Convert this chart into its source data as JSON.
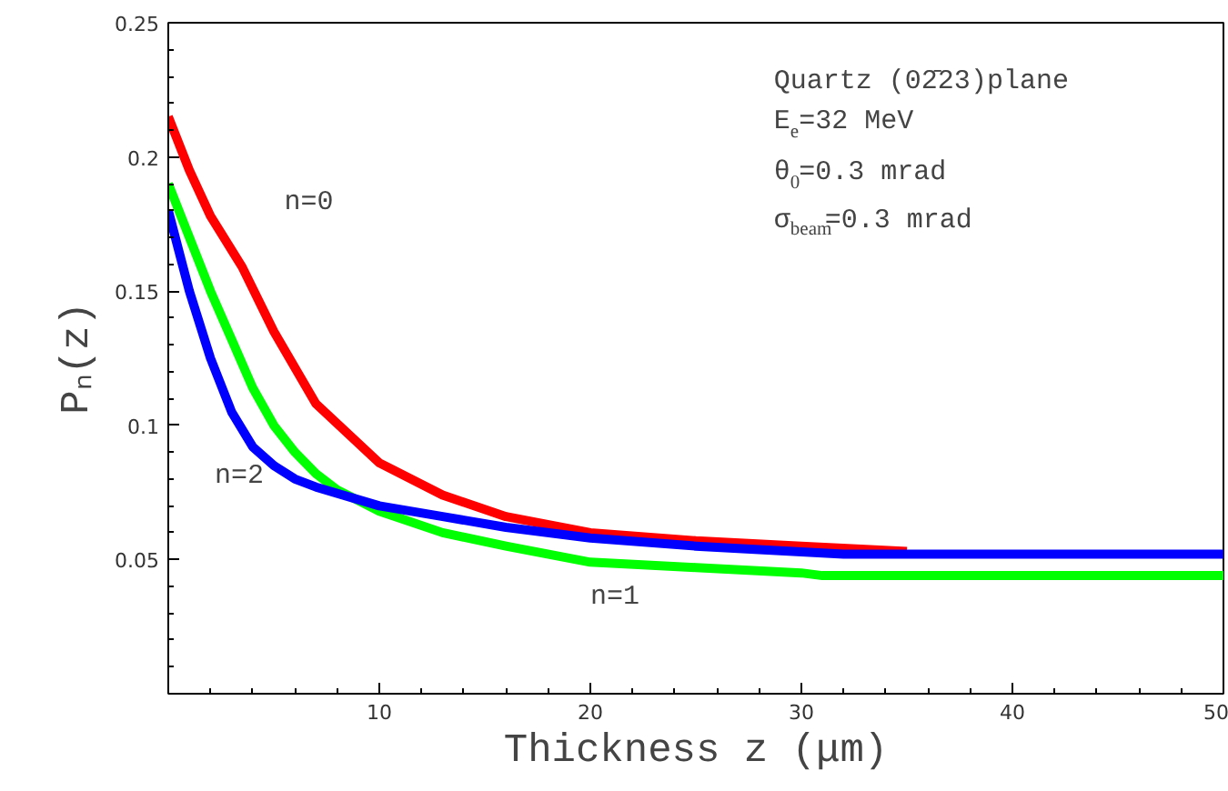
{
  "chart_data": {
    "type": "line",
    "xlabel": "Thickness z (μm)",
    "ylabel": "Pₙ(z)",
    "xlim": [
      0,
      50
    ],
    "ylim": [
      0,
      0.25
    ],
    "xticks": [
      10,
      20,
      30,
      40,
      50
    ],
    "yticks": [
      0.05,
      0.1,
      0.15,
      0.2,
      0.25
    ],
    "grid": false,
    "marker": "none",
    "line_style": "solid",
    "series": [
      {
        "color": "#ff0000",
        "x": [
          0,
          1,
          2,
          3.5,
          5,
          7,
          10,
          13,
          16,
          20,
          25,
          30,
          35
        ],
        "values": [
          0.215,
          0.195,
          0.178,
          0.159,
          0.135,
          0.108,
          0.086,
          0.074,
          0.066,
          0.06,
          0.057,
          0.055,
          0.053
        ]
      },
      {
        "color": "#00ff00",
        "x": [
          0,
          1,
          2,
          3,
          4,
          5,
          6,
          7,
          8,
          10,
          13,
          16,
          20,
          25,
          30,
          31,
          50
        ],
        "values": [
          0.19,
          0.17,
          0.15,
          0.132,
          0.114,
          0.1,
          0.09,
          0.082,
          0.076,
          0.068,
          0.06,
          0.055,
          0.049,
          0.047,
          0.045,
          0.044,
          0.044
        ]
      },
      {
        "color": "#0000ff",
        "x": [
          0,
          0.5,
          1,
          2,
          3,
          4,
          5,
          6,
          7,
          10,
          13,
          16,
          20,
          25,
          32,
          50
        ],
        "values": [
          0.18,
          0.165,
          0.15,
          0.125,
          0.105,
          0.092,
          0.085,
          0.08,
          0.077,
          0.07,
          0.066,
          0.062,
          0.058,
          0.055,
          0.052,
          0.052
        ]
      }
    ],
    "annotations": [
      "n=0",
      "n=2",
      "n=1",
      "Quartz (02̄23)plane",
      "E$_{e}$=32 MeV",
      "θ$_{0}$=0.3 mrad",
      "σ$_{beam}$=0.3 mrad"
    ]
  }
}
